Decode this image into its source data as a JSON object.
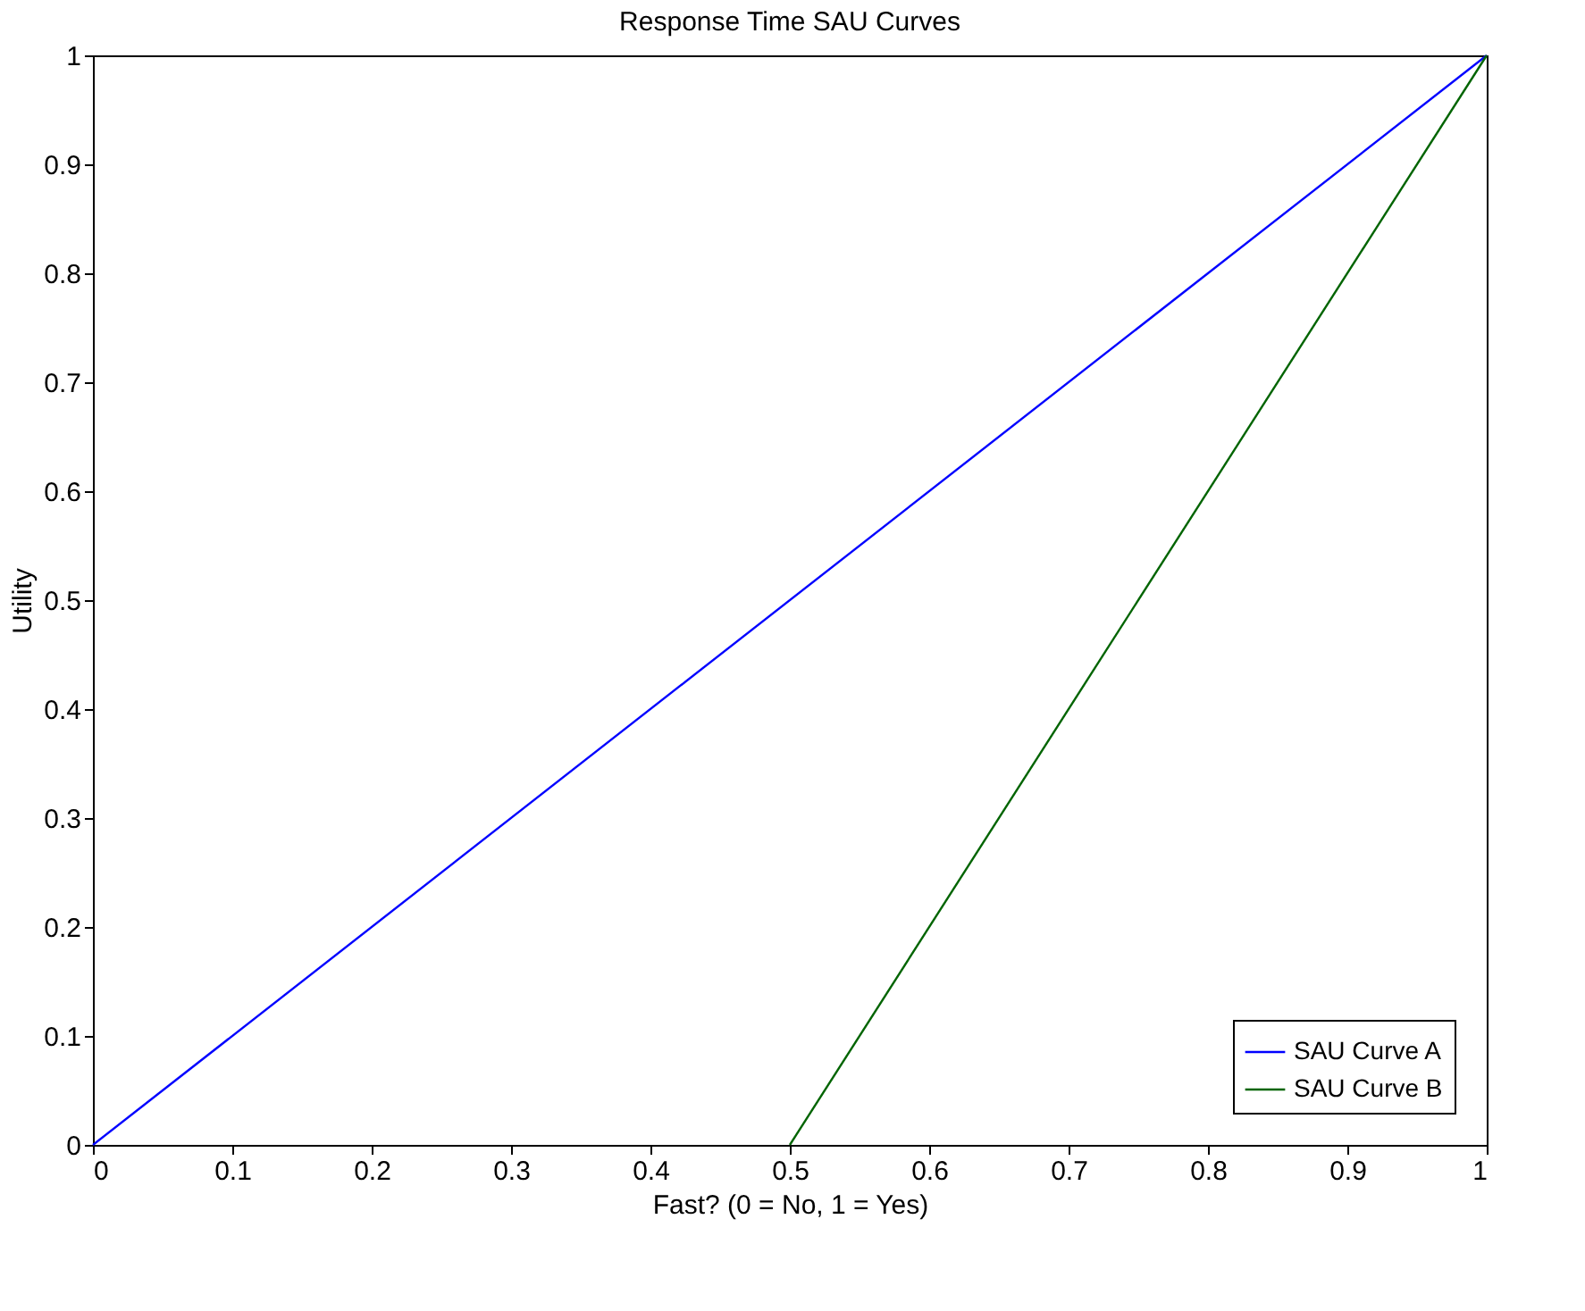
{
  "chart_data": {
    "type": "line",
    "title": "Response Time SAU Curves",
    "xlabel": "Fast? (0 = No, 1 = Yes)",
    "ylabel": "Utility",
    "series": [
      {
        "name": "SAU Curve A",
        "color": "#0000ff",
        "x": [
          0,
          1
        ],
        "values": [
          0,
          1
        ]
      },
      {
        "name": "SAU Curve B",
        "color": "#006400",
        "x": [
          0.5,
          1
        ],
        "values": [
          0,
          1
        ]
      }
    ],
    "xlim": [
      0,
      1
    ],
    "ylim": [
      0,
      1
    ],
    "xticks": [
      0,
      0.1,
      0.2,
      0.3,
      0.4,
      0.5,
      0.6,
      0.7,
      0.8,
      0.9,
      1
    ],
    "yticks": [
      0,
      0.1,
      0.2,
      0.3,
      0.4,
      0.5,
      0.6,
      0.7,
      0.8,
      0.9,
      1
    ],
    "grid": false,
    "legend": "bottom right"
  }
}
